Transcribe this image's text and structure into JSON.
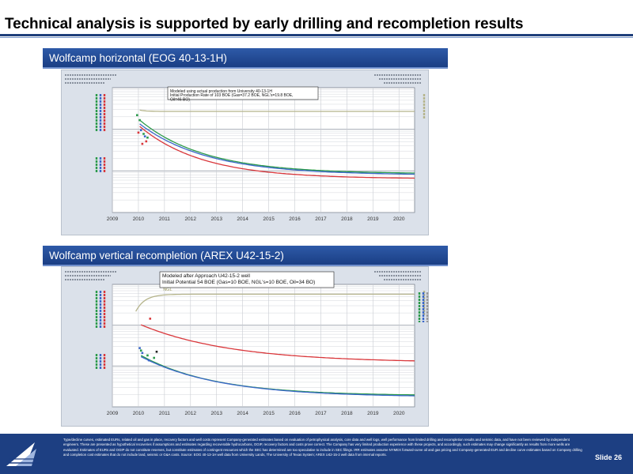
{
  "title": "Technical analysis is supported by early drilling and recompletion results",
  "panels": [
    {
      "header": "Wolfcamp horizontal (EOG 40-13-1H)",
      "note_lines": [
        "Modeled using actual production from University 40-13-1H",
        "Initial Production Rate of 103 BOE (Gas=37.2 BOE, NGL's=19.8 BOE,",
        "Oil=46 BO)"
      ]
    },
    {
      "header": "Wolfcamp vertical recompletion (AREX U42-15-2)",
      "note_lines": [
        "Modeled after Approach U42-15-2 well",
        "Initial Potential 54 BOE (Gas=10 BOE, NGL's=10 BOE, Oil=34 BO)"
      ],
      "inline_label": "NGL"
    }
  ],
  "chart_data": [
    {
      "type": "line",
      "x": [
        2009,
        2010,
        2011,
        2012,
        2013,
        2014,
        2015,
        2016,
        2017,
        2018,
        2019,
        2020
      ],
      "xlim": [
        2009,
        2020.6
      ],
      "ylim": [
        0,
        100
      ],
      "x_tick_labels": [
        "2009",
        "2010",
        "2011",
        "2012",
        "2013",
        "2014",
        "2015",
        "2016",
        "2017",
        "2018",
        "2019",
        "2020"
      ],
      "grid": true,
      "series": [
        {
          "color": "#b5b48b",
          "forecast_start": 2010.05,
          "start": 82,
          "end": 81,
          "tau": 0.25
        },
        {
          "color": "#2b9a4a",
          "forecast_start": 2010.05,
          "start": 74,
          "end": 31,
          "tau": 2.5
        },
        {
          "color": "#3a67c9",
          "forecast_start": 2010.05,
          "start": 71,
          "end": 30,
          "tau": 2.6
        },
        {
          "color": "#d9363a",
          "forecast_start": 2010.05,
          "start": 69,
          "end": 27,
          "tau": 2.4
        }
      ],
      "points": [
        {
          "x": 2009.95,
          "y": 78,
          "color": "#2b9a4a"
        },
        {
          "x": 2010.05,
          "y": 74,
          "color": "#2b9a4a"
        },
        {
          "x": 2010.2,
          "y": 63,
          "color": "#2b9a4a"
        },
        {
          "x": 2010.35,
          "y": 60,
          "color": "#2b9a4a"
        },
        {
          "x": 2010.0,
          "y": 64,
          "color": "#d9363a"
        },
        {
          "x": 2010.15,
          "y": 55,
          "color": "#d9363a"
        },
        {
          "x": 2010.3,
          "y": 57,
          "color": "#d9363a"
        },
        {
          "x": 2010.1,
          "y": 66,
          "color": "#3a67c9"
        },
        {
          "x": 2010.25,
          "y": 61,
          "color": "#3a67c9"
        }
      ]
    },
    {
      "type": "line",
      "x": [
        2009,
        2010,
        2011,
        2012,
        2013,
        2014,
        2015,
        2016,
        2017,
        2018,
        2019,
        2020
      ],
      "xlim": [
        2009,
        2020.6
      ],
      "ylim": [
        0,
        100
      ],
      "x_tick_labels": [
        "2009",
        "2010",
        "2011",
        "2012",
        "2013",
        "2014",
        "2015",
        "2016",
        "2017",
        "2018",
        "2019",
        "2020"
      ],
      "grid": true,
      "series": [
        {
          "color": "#b5b48b",
          "forecast_start": 2009.9,
          "start": 78,
          "end": 92,
          "tau": 0.35
        },
        {
          "color": "#d9363a",
          "forecast_start": 2010.1,
          "start": 67,
          "end": 36,
          "tau": 3.5
        },
        {
          "color": "#2b9a4a",
          "forecast_start": 2010.1,
          "start": 42,
          "end": 9,
          "tau": 2.8
        },
        {
          "color": "#3a67c9",
          "forecast_start": 2010.1,
          "start": 41,
          "end": 8,
          "tau": 3.0
        }
      ],
      "points": [
        {
          "x": 2010.05,
          "y": 48,
          "color": "#3a67c9"
        },
        {
          "x": 2010.15,
          "y": 44,
          "color": "#3a67c9"
        },
        {
          "x": 2010.4,
          "y": 38,
          "color": "#3a67c9"
        },
        {
          "x": 2010.1,
          "y": 46,
          "color": "#2b9a4a"
        },
        {
          "x": 2010.35,
          "y": 42,
          "color": "#2b9a4a"
        },
        {
          "x": 2010.6,
          "y": 40,
          "color": "#2b9a4a"
        },
        {
          "x": 2010.45,
          "y": 72,
          "color": "#d9363a"
        },
        {
          "x": 2010.7,
          "y": 45,
          "color": "#222222"
        }
      ]
    }
  ],
  "footer": {
    "disclaimer": "Type/decline curves, estimated EURs, related oil and gas in place, recovery factors and well costs represent Company-generated estimates based on evaluation of petrophysical analysis, core data and well logs, well performance from limited drilling and recompletion results and seismic data, and have not been reviewed by independent engineers. These are presented as hypothetical recoveries if assumptions and estimates regarding recoverable hydrocarbons, OGIP, recovery factors and costs prove correct. The Company has very limited production experience with these projects, and accordingly, such estimates may change significantly as results from more wells are evaluated. Estimates of EURs and OGIP do not constitute reserves, but constitute estimates of contingent resources which the SEC has determined are too speculative to include in SEC filings. IRR estimates assume NYMEX forward-curve oil and gas pricing and Company-generated EUR and decline curve estimates based on Company drilling and completion cost estimates that do not include land, seismic or G&A costs. Source: EOG 40-13-1H well data from University Lands, The University of Texas System; AREX U42-15-2 well data from internal reports.",
    "slide_label": "Slide 26"
  },
  "colors": {
    "brand_blue": "#1d3f82",
    "header_blue": "#24509c",
    "plot_bg": "#ffffff",
    "chart_frame": "#dbe1ea"
  }
}
